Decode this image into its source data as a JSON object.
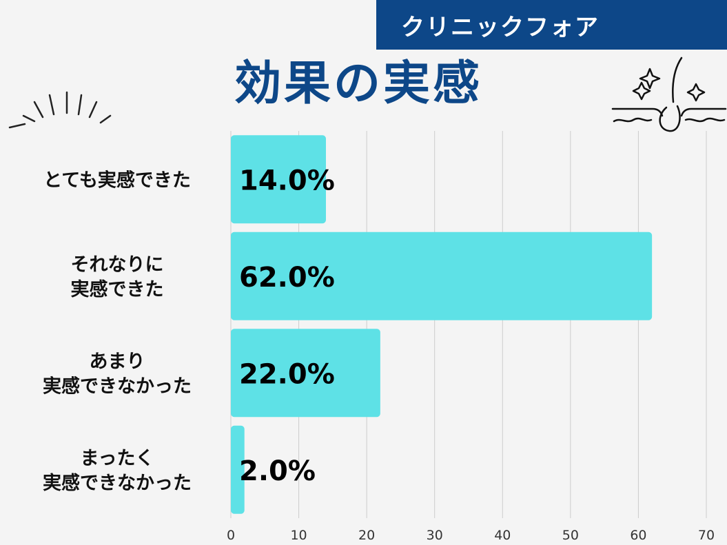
{
  "brand": "クリニックフォア",
  "chart_data": {
    "type": "bar",
    "orientation": "horizontal",
    "title": "効果の実感",
    "categories": [
      [
        "とても実感できた"
      ],
      [
        "それなりに",
        "実感できた"
      ],
      [
        "あまり",
        "実感できなかった"
      ],
      [
        "まったく",
        "実感できなかった"
      ]
    ],
    "values": [
      14.0,
      62.0,
      22.0,
      2.0
    ],
    "data_labels": [
      "14.0%",
      "62.0%",
      "22.0%",
      "2.0%"
    ],
    "xlim": [
      0,
      70
    ],
    "xticks": [
      "0",
      "10",
      "20",
      "30",
      "40",
      "50",
      "60",
      "70"
    ],
    "grid": true,
    "colors": {
      "bar": "#5ee1e6",
      "title": "#0d4788",
      "banner": "#0d4788",
      "grid": "#cccccc"
    }
  },
  "icons": {
    "left": "sparkle-lines-icon",
    "right": "hair-follicle-sparkle-icon"
  }
}
